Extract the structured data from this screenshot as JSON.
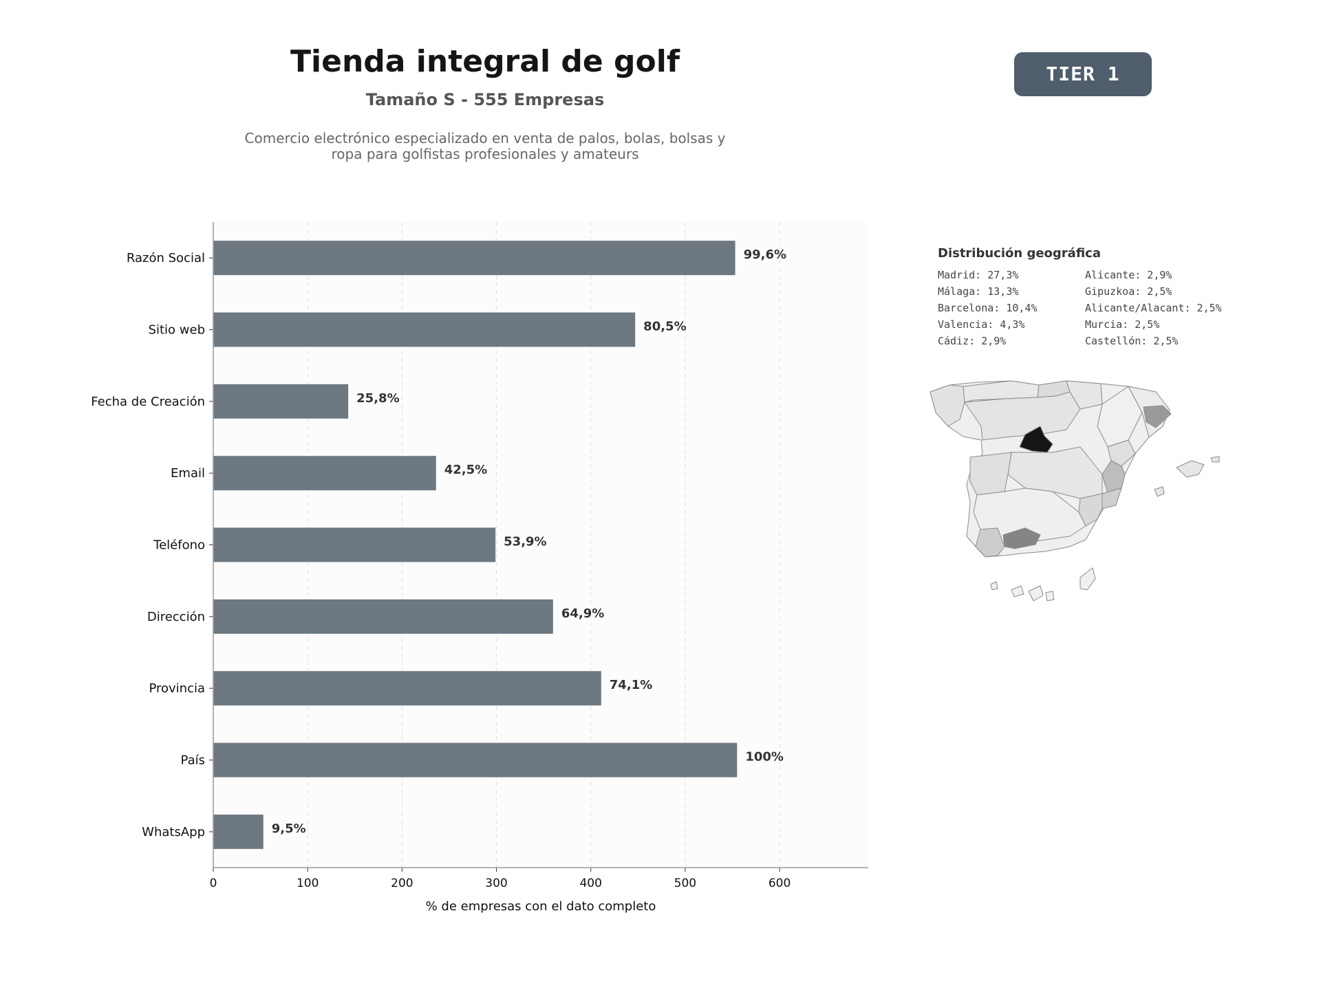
{
  "header": {
    "title": "Tienda integral de golf",
    "subtitle": "Tamaño S - 555 Empresas",
    "description": "Comercio electrónico especializado en venta de palos, bolas, bolsas y ropa para golfistas profesionales y amateurs"
  },
  "badge": {
    "label": "TIER 1",
    "color": "#4f5d6c"
  },
  "chart_data": {
    "type": "bar",
    "orientation": "horizontal",
    "categories": [
      "Razón Social",
      "Sitio web",
      "Fecha de Creación",
      "Email",
      "Teléfono",
      "Dirección",
      "Provincia",
      "País",
      "WhatsApp"
    ],
    "values": [
      553,
      447,
      143,
      236,
      299,
      360,
      411,
      555,
      53
    ],
    "value_labels": [
      "99,6%",
      "80,5%",
      "25,8%",
      "42,5%",
      "53,9%",
      "64,9%",
      "74,1%",
      "100%",
      "9,5%"
    ],
    "xlabel": "% de empresas con el dato completo",
    "ylabel": "",
    "xlim": [
      0,
      694
    ],
    "xticks": [
      0,
      100,
      200,
      300,
      400,
      500,
      600
    ],
    "grid": "vertical dashed",
    "bar_color": "#6e7881"
  },
  "geo": {
    "title": "Distribución geográfica",
    "left_col": [
      "Madrid: 27,3%",
      "Málaga: 13,3%",
      "Barcelona: 10,4%",
      "Valencia: 4,3%",
      "Cádiz: 2,9%"
    ],
    "right_col": [
      "Alicante: 2,9%",
      "Gipuzkoa: 2,5%",
      "Alicante/Alacant: 2,5%",
      "Murcia: 2,5%",
      "Castellón: 2,5%"
    ]
  }
}
